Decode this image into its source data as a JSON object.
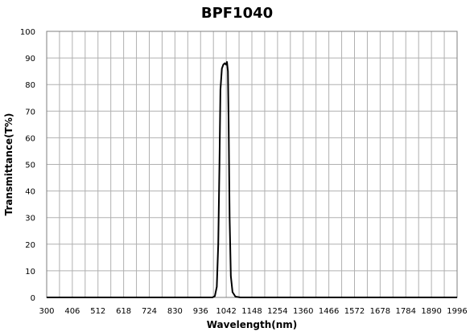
{
  "chart_data": {
    "type": "line",
    "title": "BPF1040",
    "xlabel": "Wavelength(nm)",
    "ylabel": "Transmittance(T%)",
    "xlim": [
      300,
      1996
    ],
    "ylim": [
      0,
      100
    ],
    "x_ticks": [
      300,
      406,
      512,
      618,
      724,
      830,
      936,
      1042,
      1148,
      1254,
      1360,
      1466,
      1572,
      1678,
      1784,
      1890,
      1996
    ],
    "y_ticks": [
      0,
      10,
      20,
      30,
      40,
      50,
      60,
      70,
      80,
      90,
      100
    ],
    "x_minor_step": 53,
    "grid": true,
    "legend": "none",
    "line_color": "#000000",
    "series": [
      {
        "x": [
          300,
          936,
          985,
          995,
          1003,
          1009,
          1014,
          1018,
          1024,
          1030,
          1036,
          1041,
          1045,
          1049,
          1052,
          1056,
          1061,
          1068,
          1080,
          1100,
          1996
        ],
        "y": [
          0,
          0,
          0,
          0.5,
          4,
          20,
          50,
          78,
          86,
          87.5,
          88,
          87.5,
          88.5,
          85,
          65,
          30,
          8,
          2,
          0.3,
          0,
          0
        ]
      }
    ]
  }
}
